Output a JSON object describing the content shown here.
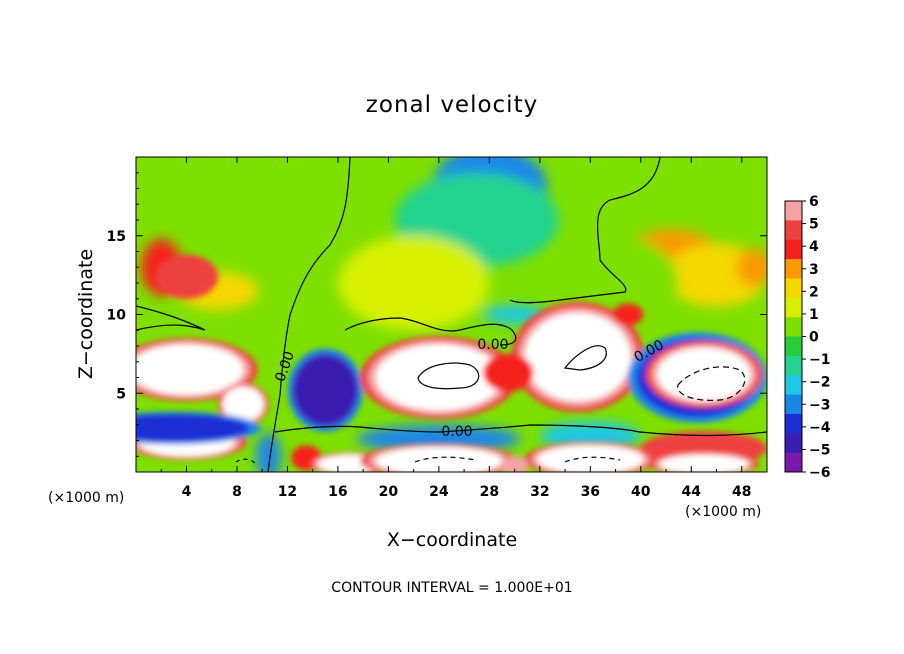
{
  "chart_data": {
    "type": "heatmap",
    "title": "zonal velocity",
    "xlabel": "X−coordinate",
    "ylabel": "Z−coordinate",
    "x_unit_left": "(×1000 m)",
    "x_unit_right": "(×1000 m)",
    "xlim": [
      0,
      50
    ],
    "ylim": [
      0,
      20
    ],
    "xticks": [
      "4",
      "8",
      "12",
      "16",
      "20",
      "24",
      "28",
      "32",
      "36",
      "40",
      "44",
      "48"
    ],
    "yticks": [
      "5",
      "10",
      "15"
    ],
    "colorbar": {
      "labels": [
        "6",
        "5",
        "4",
        "3",
        "2",
        "1",
        "0",
        "−1",
        "−2",
        "−3",
        "−4",
        "−5",
        "−6"
      ],
      "colors": [
        "#f4a3a3",
        "#ef4040",
        "#f5201f",
        "#f99a00",
        "#f5d800",
        "#d6f000",
        "#7ee000",
        "#28cd3c",
        "#21d38f",
        "#1ec8e6",
        "#1a87e8",
        "#1c2fd6",
        "#3a1db3",
        "#7a1aaa"
      ]
    },
    "contour_labels": [
      "0.00",
      "0.00",
      "0.00",
      "0.00"
    ],
    "note": "CONTOUR INTERVAL = 1.000E+01",
    "field_blobs": [
      {
        "x": 4,
        "y": 12.4,
        "v": 4.8,
        "rx": 2.5,
        "ry": 1.4
      },
      {
        "x": 2,
        "y": 13.0,
        "v": 3.8,
        "rx": 1.6,
        "ry": 1.8
      },
      {
        "x": 6.5,
        "y": 11.5,
        "v": 2.5,
        "rx": 3.2,
        "ry": 1.2
      },
      {
        "x": 4,
        "y": 6.5,
        "v": 7,
        "rx": 4.5,
        "ry": 1.6
      },
      {
        "x": 8.5,
        "y": 4.3,
        "v": 7,
        "rx": 1.6,
        "ry": 1.1
      },
      {
        "x": 4,
        "y": 1.9,
        "v": 7,
        "rx": 3.8,
        "ry": 0.9
      },
      {
        "x": 3,
        "y": 2.8,
        "v": -4.5,
        "rx": 6.0,
        "ry": 0.9
      },
      {
        "x": 10.5,
        "y": 1.0,
        "v": -3.5,
        "rx": 1.0,
        "ry": 1.5
      },
      {
        "x": 15,
        "y": 5.2,
        "v": -5.5,
        "rx": 2.6,
        "ry": 2.3
      },
      {
        "x": 13.5,
        "y": 0.9,
        "v": 4.5,
        "rx": 1.2,
        "ry": 0.8
      },
      {
        "x": 17,
        "y": 0.5,
        "v": 7,
        "rx": 2.6,
        "ry": 0.6
      },
      {
        "x": 24,
        "y": 6.0,
        "v": 7,
        "rx": 5.0,
        "ry": 2.1
      },
      {
        "x": 35,
        "y": 7.3,
        "v": 7,
        "rx": 4.2,
        "ry": 2.8
      },
      {
        "x": 29.5,
        "y": 6.3,
        "v": 4.5,
        "rx": 2.0,
        "ry": 1.2
      },
      {
        "x": 24,
        "y": 2.1,
        "v": -3.6,
        "rx": 6.5,
        "ry": 0.9
      },
      {
        "x": 36,
        "y": 2.3,
        "v": -3.4,
        "rx": 4.0,
        "ry": 0.9
      },
      {
        "x": 24,
        "y": 0.7,
        "v": 7,
        "rx": 5.0,
        "ry": 0.9
      },
      {
        "x": 36,
        "y": 0.8,
        "v": 7,
        "rx": 4.2,
        "ry": 0.9
      },
      {
        "x": 30,
        "y": 0.4,
        "v": 6,
        "rx": 1.1,
        "ry": 0.6
      },
      {
        "x": 44.5,
        "y": 6.0,
        "v": -5,
        "rx": 4.8,
        "ry": 2.5
      },
      {
        "x": 45,
        "y": 6.2,
        "v": 7.5,
        "rx": 3.7,
        "ry": 1.7
      },
      {
        "x": 45,
        "y": 1.5,
        "v": 5,
        "rx": 5.0,
        "ry": 1.1
      },
      {
        "x": 45,
        "y": 0.5,
        "v": 7,
        "rx": 3.5,
        "ry": 0.6
      },
      {
        "x": 28,
        "y": 18.0,
        "v": -3.8,
        "rx": 4.6,
        "ry": 2.7
      },
      {
        "x": 27,
        "y": 16.0,
        "v": -1.8,
        "rx": 6.5,
        "ry": 3.0
      },
      {
        "x": 42.5,
        "y": 14.0,
        "v": 3.2,
        "rx": 3.5,
        "ry": 1.4
      },
      {
        "x": 46,
        "y": 12.5,
        "v": 2.2,
        "rx": 4.0,
        "ry": 2.0
      },
      {
        "x": 49,
        "y": 13.0,
        "v": 3.2,
        "rx": 1.4,
        "ry": 1.2
      },
      {
        "x": 30,
        "y": 10.0,
        "v": -2.5,
        "rx": 2.5,
        "ry": 0.6
      },
      {
        "x": 39,
        "y": 10.0,
        "v": 4.5,
        "rx": 1.2,
        "ry": 0.7
      },
      {
        "x": 22,
        "y": 12.0,
        "v": 0.8,
        "rx": 6.0,
        "ry": 3.0
      },
      {
        "x": 38,
        "y": 12.0,
        "v": 0.5,
        "rx": 5.0,
        "ry": 3.0
      }
    ]
  }
}
